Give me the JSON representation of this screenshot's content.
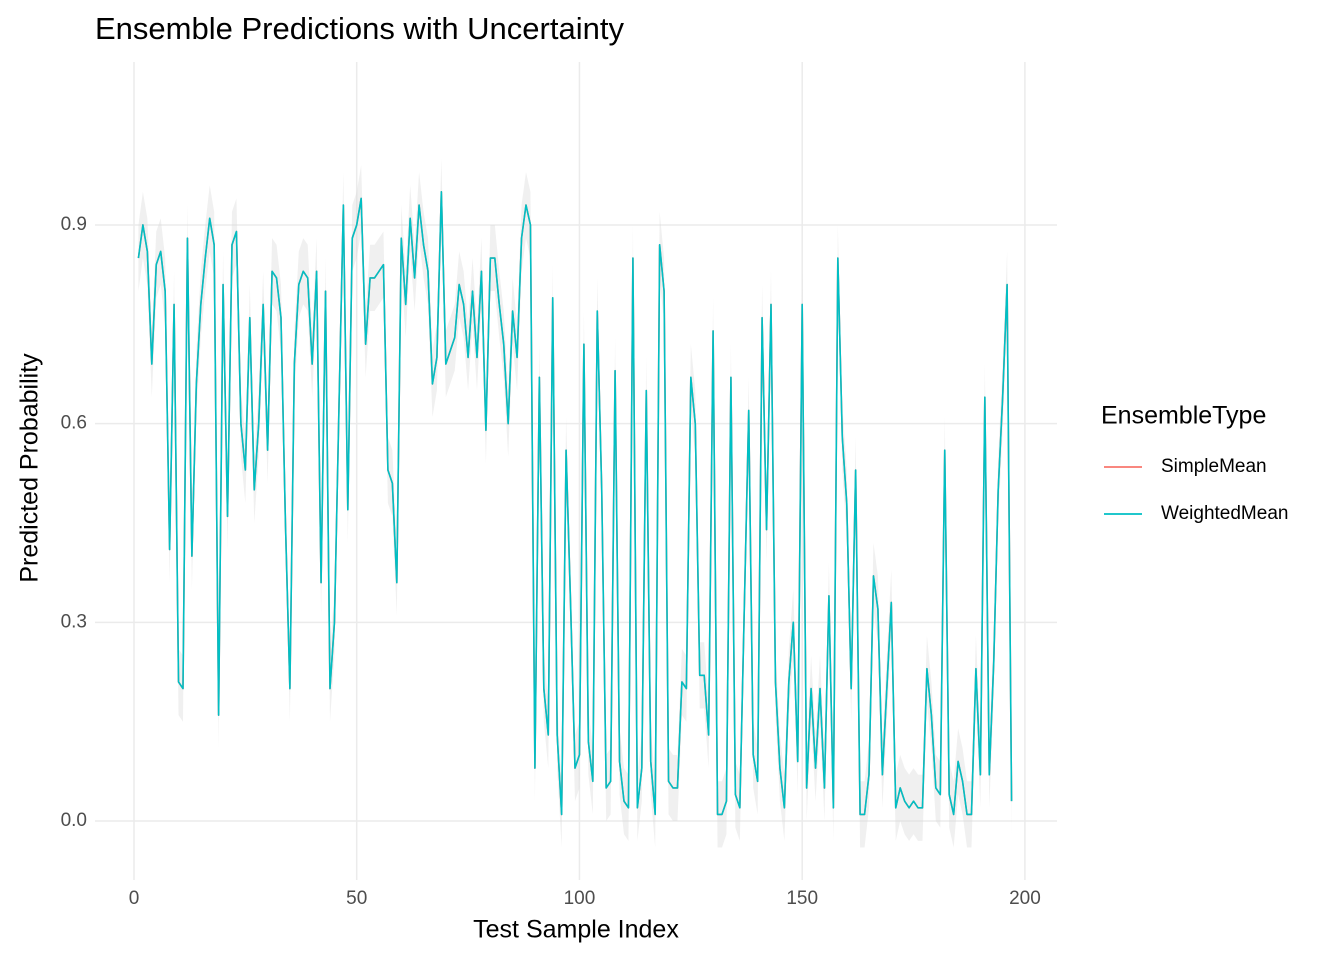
{
  "chart_data": {
    "type": "line",
    "title": "Ensemble Predictions with Uncertainty",
    "x_label": "Test Sample Index",
    "y_label": "Predicted Probability",
    "legend_title": "EnsembleType",
    "legend_position": "right",
    "grid": true,
    "xlim": [
      -8.75,
      207.2
    ],
    "ylim": [
      -0.089,
      1.146
    ],
    "xticks": [
      0,
      50,
      100,
      150,
      200
    ],
    "yticks": [
      {
        "value": 0,
        "label": "0.0"
      },
      0.3,
      0.6,
      0.9
    ],
    "x": [
      1,
      2,
      3,
      4,
      5,
      6,
      7,
      8,
      9,
      10,
      11,
      12,
      13,
      14,
      15,
      16,
      17,
      18,
      19,
      20,
      21,
      22,
      23,
      24,
      25,
      26,
      27,
      28,
      29,
      30,
      31,
      32,
      33,
      34,
      35,
      36,
      37,
      38,
      39,
      40,
      41,
      42,
      43,
      44,
      45,
      46,
      47,
      48,
      49,
      50,
      51,
      52,
      53,
      54,
      55,
      56,
      57,
      58,
      59,
      60,
      61,
      62,
      63,
      64,
      65,
      66,
      67,
      68,
      69,
      70,
      71,
      72,
      73,
      74,
      75,
      76,
      77,
      78,
      79,
      80,
      81,
      82,
      83,
      84,
      85,
      86,
      87,
      88,
      89,
      90,
      91,
      92,
      93,
      94,
      95,
      96,
      97,
      98,
      99,
      100,
      101,
      102,
      103,
      104,
      105,
      106,
      107,
      108,
      109,
      110,
      111,
      112,
      113,
      114,
      115,
      116,
      117,
      118,
      119,
      120,
      121,
      122,
      123,
      124,
      125,
      126,
      127,
      128,
      129,
      130,
      131,
      132,
      133,
      134,
      135,
      136,
      137,
      138,
      139,
      140,
      141,
      142,
      143,
      144,
      145,
      146,
      147,
      148,
      149,
      150,
      151,
      152,
      153,
      154,
      155,
      156,
      157,
      158,
      159,
      160,
      161,
      162,
      163,
      164,
      165,
      166,
      167,
      168,
      169,
      170,
      171,
      172,
      173,
      174,
      175,
      176,
      177,
      178,
      179,
      180,
      181,
      182,
      183,
      184,
      185,
      186,
      187,
      188,
      189,
      190,
      191,
      192,
      193,
      194,
      195,
      196,
      197
    ],
    "ribbon": {
      "color": "#d9d9d9",
      "lower": [
        0.8,
        0.85,
        0.81,
        0.64,
        0.79,
        0.81,
        0.75,
        0.36,
        0.73,
        0.16,
        0.15,
        0.83,
        0.35,
        0.61,
        0.73,
        0.8,
        0.86,
        0.82,
        0.11,
        0.76,
        0.41,
        0.82,
        0.84,
        0.55,
        0.48,
        0.71,
        0.45,
        0.55,
        0.73,
        0.51,
        0.78,
        0.77,
        0.71,
        0.4,
        0.15,
        0.64,
        0.76,
        0.78,
        0.77,
        0.64,
        0.78,
        0.31,
        0.75,
        0.15,
        0.25,
        0.57,
        0.88,
        0.42,
        0.83,
        0.85,
        0.89,
        0.67,
        0.77,
        0.77,
        0.78,
        0.79,
        0.48,
        0.46,
        0.31,
        0.83,
        0.73,
        0.86,
        0.77,
        0.88,
        0.82,
        0.78,
        0.61,
        0.65,
        0.9,
        0.64,
        0.66,
        0.68,
        0.76,
        0.73,
        0.65,
        0.75,
        0.65,
        0.78,
        0.54,
        0.8,
        0.8,
        0.73,
        0.67,
        0.55,
        0.72,
        0.65,
        0.83,
        0.88,
        0.85,
        0.03,
        0.62,
        0.15,
        0.08,
        0.74,
        0.08,
        -0.04,
        0.51,
        0.28,
        0.03,
        0.05,
        0.67,
        0.07,
        0.01,
        0.72,
        0.45,
        0,
        0.01,
        0.63,
        0.04,
        -0.02,
        -0.03,
        0.8,
        -0.03,
        0.03,
        0.6,
        0.04,
        -0.04,
        0.82,
        0.75,
        0.01,
        0,
        0,
        0.16,
        0.15,
        0.62,
        0.55,
        0.17,
        0.17,
        0.08,
        0.69,
        -0.04,
        -0.04,
        -0.02,
        0.62,
        -0.01,
        -0.03,
        0.27,
        0.57,
        0.05,
        0.01,
        0.71,
        0.39,
        0.73,
        0.16,
        0.03,
        -0.03,
        0.16,
        0.25,
        0.04,
        0.73,
        0,
        0.15,
        0.03,
        0.15,
        0,
        0.29,
        -0.03,
        0.8,
        0.53,
        0.43,
        0.15,
        0.48,
        -0.04,
        -0.04,
        0.02,
        0.32,
        0.27,
        0.02,
        0.15,
        0.28,
        -0.03,
        0,
        -0.02,
        -0.03,
        -0.02,
        -0.03,
        -0.03,
        0.18,
        0.11,
        0,
        -0.01,
        0.51,
        -0.01,
        -0.04,
        0.04,
        0.01,
        -0.04,
        -0.04,
        0.18,
        0.02,
        0.59,
        0.02,
        0.19,
        0.45,
        0.59,
        0.76,
        -0.02
      ],
      "upper": [
        0.9,
        0.95,
        0.91,
        0.74,
        0.89,
        0.91,
        0.85,
        0.46,
        0.83,
        0.26,
        0.25,
        0.93,
        0.45,
        0.71,
        0.83,
        0.9,
        0.96,
        0.92,
        0.21,
        0.86,
        0.51,
        0.92,
        0.94,
        0.65,
        0.58,
        0.81,
        0.55,
        0.65,
        0.83,
        0.61,
        0.88,
        0.87,
        0.81,
        0.5,
        0.25,
        0.74,
        0.86,
        0.88,
        0.87,
        0.74,
        0.88,
        0.41,
        0.85,
        0.25,
        0.35,
        0.67,
        0.98,
        0.52,
        0.93,
        0.95,
        0.99,
        0.77,
        0.87,
        0.87,
        0.88,
        0.89,
        0.58,
        0.56,
        0.41,
        0.93,
        0.83,
        0.96,
        0.87,
        0.98,
        0.92,
        0.88,
        0.71,
        0.75,
        1.0,
        0.74,
        0.76,
        0.78,
        0.86,
        0.83,
        0.75,
        0.85,
        0.75,
        0.88,
        0.64,
        0.9,
        0.9,
        0.83,
        0.77,
        0.65,
        0.82,
        0.75,
        0.93,
        0.98,
        0.95,
        0.13,
        0.72,
        0.25,
        0.18,
        0.84,
        0.18,
        0.06,
        0.61,
        0.38,
        0.13,
        0.15,
        0.77,
        0.17,
        0.11,
        0.82,
        0.55,
        0.1,
        0.11,
        0.73,
        0.14,
        0.08,
        0.07,
        0.9,
        0.07,
        0.13,
        0.7,
        0.14,
        0.06,
        0.92,
        0.85,
        0.11,
        0.1,
        0.1,
        0.26,
        0.25,
        0.72,
        0.65,
        0.27,
        0.27,
        0.18,
        0.79,
        0.06,
        0.06,
        0.08,
        0.72,
        0.09,
        0.07,
        0.37,
        0.67,
        0.15,
        0.11,
        0.81,
        0.49,
        0.83,
        0.26,
        0.13,
        0.07,
        0.26,
        0.35,
        0.14,
        0.83,
        0.1,
        0.25,
        0.13,
        0.25,
        0.1,
        0.39,
        0.07,
        0.9,
        0.63,
        0.53,
        0.25,
        0.58,
        0.06,
        0.06,
        0.12,
        0.42,
        0.37,
        0.12,
        0.25,
        0.38,
        0.07,
        0.1,
        0.08,
        0.07,
        0.08,
        0.07,
        0.07,
        0.28,
        0.21,
        0.1,
        0.09,
        0.61,
        0.09,
        0.06,
        0.14,
        0.11,
        0.06,
        0.06,
        0.28,
        0.12,
        0.69,
        0.12,
        0.29,
        0.55,
        0.69,
        0.86,
        0.08
      ]
    },
    "series": [
      {
        "name": "SimpleMean",
        "color": "#F8766D",
        "values": [
          0.85,
          0.9,
          0.86,
          0.69,
          0.84,
          0.86,
          0.8,
          0.41,
          0.78,
          0.21,
          0.2,
          0.88,
          0.4,
          0.66,
          0.78,
          0.85,
          0.91,
          0.87,
          0.16,
          0.81,
          0.46,
          0.87,
          0.89,
          0.6,
          0.53,
          0.76,
          0.5,
          0.6,
          0.78,
          0.56,
          0.83,
          0.82,
          0.76,
          0.45,
          0.2,
          0.69,
          0.81,
          0.83,
          0.82,
          0.69,
          0.83,
          0.36,
          0.8,
          0.2,
          0.3,
          0.62,
          0.93,
          0.47,
          0.88,
          0.9,
          0.94,
          0.72,
          0.82,
          0.82,
          0.83,
          0.84,
          0.53,
          0.51,
          0.36,
          0.88,
          0.78,
          0.91,
          0.82,
          0.93,
          0.87,
          0.83,
          0.66,
          0.7,
          0.95,
          0.69,
          0.71,
          0.73,
          0.81,
          0.78,
          0.7,
          0.8,
          0.7,
          0.83,
          0.59,
          0.85,
          0.85,
          0.78,
          0.72,
          0.6,
          0.77,
          0.7,
          0.88,
          0.93,
          0.9,
          0.08,
          0.67,
          0.2,
          0.13,
          0.79,
          0.13,
          0.01,
          0.56,
          0.33,
          0.08,
          0.1,
          0.72,
          0.12,
          0.06,
          0.77,
          0.5,
          0.05,
          0.06,
          0.68,
          0.09,
          0.03,
          0.02,
          0.85,
          0.02,
          0.08,
          0.65,
          0.09,
          0.01,
          0.87,
          0.8,
          0.06,
          0.05,
          0.05,
          0.21,
          0.2,
          0.67,
          0.6,
          0.22,
          0.22,
          0.13,
          0.74,
          0.01,
          0.01,
          0.03,
          0.67,
          0.04,
          0.02,
          0.32,
          0.62,
          0.1,
          0.06,
          0.76,
          0.44,
          0.78,
          0.21,
          0.08,
          0.02,
          0.21,
          0.3,
          0.09,
          0.78,
          0.05,
          0.2,
          0.08,
          0.2,
          0.05,
          0.34,
          0.02,
          0.85,
          0.58,
          0.48,
          0.2,
          0.53,
          0.01,
          0.01,
          0.07,
          0.37,
          0.32,
          0.07,
          0.2,
          0.33,
          0.02,
          0.05,
          0.03,
          0.02,
          0.03,
          0.02,
          0.02,
          0.23,
          0.16,
          0.05,
          0.04,
          0.56,
          0.04,
          0.01,
          0.09,
          0.06,
          0.01,
          0.01,
          0.23,
          0.07,
          0.64,
          0.07,
          0.24,
          0.5,
          0.64,
          0.81,
          0.03
        ]
      },
      {
        "name": "WeightedMean",
        "color": "#00BFC4",
        "values": [
          0.85,
          0.9,
          0.86,
          0.69,
          0.84,
          0.86,
          0.8,
          0.41,
          0.78,
          0.21,
          0.2,
          0.88,
          0.4,
          0.66,
          0.78,
          0.85,
          0.91,
          0.87,
          0.16,
          0.81,
          0.46,
          0.87,
          0.89,
          0.6,
          0.53,
          0.76,
          0.5,
          0.6,
          0.78,
          0.56,
          0.83,
          0.82,
          0.76,
          0.45,
          0.2,
          0.69,
          0.81,
          0.83,
          0.82,
          0.69,
          0.83,
          0.36,
          0.8,
          0.2,
          0.3,
          0.62,
          0.93,
          0.47,
          0.88,
          0.9,
          0.94,
          0.72,
          0.82,
          0.82,
          0.83,
          0.84,
          0.53,
          0.51,
          0.36,
          0.88,
          0.78,
          0.91,
          0.82,
          0.93,
          0.87,
          0.83,
          0.66,
          0.7,
          0.95,
          0.69,
          0.71,
          0.73,
          0.81,
          0.78,
          0.7,
          0.8,
          0.7,
          0.83,
          0.59,
          0.85,
          0.85,
          0.78,
          0.72,
          0.6,
          0.77,
          0.7,
          0.88,
          0.93,
          0.9,
          0.08,
          0.67,
          0.2,
          0.13,
          0.79,
          0.13,
          0.01,
          0.56,
          0.33,
          0.08,
          0.1,
          0.72,
          0.12,
          0.06,
          0.77,
          0.5,
          0.05,
          0.06,
          0.68,
          0.09,
          0.03,
          0.02,
          0.85,
          0.02,
          0.08,
          0.65,
          0.09,
          0.01,
          0.87,
          0.8,
          0.06,
          0.05,
          0.05,
          0.21,
          0.2,
          0.67,
          0.6,
          0.22,
          0.22,
          0.13,
          0.74,
          0.01,
          0.01,
          0.03,
          0.67,
          0.04,
          0.02,
          0.32,
          0.62,
          0.1,
          0.06,
          0.76,
          0.44,
          0.78,
          0.21,
          0.08,
          0.02,
          0.21,
          0.3,
          0.09,
          0.78,
          0.05,
          0.2,
          0.08,
          0.2,
          0.05,
          0.34,
          0.02,
          0.85,
          0.58,
          0.48,
          0.2,
          0.53,
          0.01,
          0.01,
          0.07,
          0.37,
          0.32,
          0.07,
          0.2,
          0.33,
          0.02,
          0.05,
          0.03,
          0.02,
          0.03,
          0.02,
          0.02,
          0.23,
          0.16,
          0.05,
          0.04,
          0.56,
          0.04,
          0.01,
          0.09,
          0.06,
          0.01,
          0.01,
          0.23,
          0.07,
          0.64,
          0.07,
          0.24,
          0.5,
          0.64,
          0.81,
          0.03
        ]
      }
    ]
  }
}
